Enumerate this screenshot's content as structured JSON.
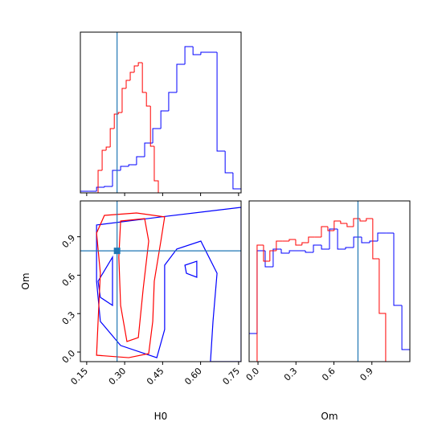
{
  "chart_data": [
    {
      "type": "histogram",
      "xlim": [
        0.125,
        0.76
      ],
      "ylim": [
        0,
        200
      ],
      "xticks": [
        0.15,
        0.3,
        0.45,
        0.6,
        0.75
      ],
      "truth": 0.27,
      "truth_color": "#1f77b4",
      "series": [
        {
          "color": "#0000ff",
          "bins": [
            0.125,
            0.157,
            0.189,
            0.22,
            0.252,
            0.284,
            0.316,
            0.347,
            0.379,
            0.411,
            0.443,
            0.474,
            0.506,
            0.538,
            0.57,
            0.601,
            0.633,
            0.665,
            0.697,
            0.728,
            0.76
          ],
          "values": [
            2,
            2,
            7,
            8,
            28,
            33,
            35,
            45,
            62,
            80,
            102,
            125,
            160,
            182,
            172,
            175,
            175,
            52,
            25,
            5
          ]
        },
        {
          "color": "#ff0000",
          "bins": [
            0.195,
            0.211,
            0.227,
            0.243,
            0.259,
            0.275,
            0.29,
            0.306,
            0.322,
            0.338,
            0.354,
            0.37,
            0.386,
            0.402,
            0.417,
            0.433
          ],
          "values": [
            28,
            53,
            57,
            80,
            98,
            100,
            130,
            140,
            150,
            158,
            162,
            125,
            108,
            58,
            15
          ]
        }
      ]
    },
    {
      "type": "contour",
      "xlim": [
        0.125,
        0.76
      ],
      "ylim": [
        -0.075,
        1.18
      ],
      "xticks": [
        0.15,
        {
          "value": 0.3,
          "label": "0.30"
        },
        0.45,
        {
          "value": 0.6,
          "label": "0.60"
        },
        0.75
      ],
      "yticks": [
        {
          "value": 0,
          "label": "0.0"
        },
        0.3,
        0.6,
        0.9
      ],
      "xlabel": "H0",
      "ylabel": "Om",
      "truth": [
        0.27,
        0.79
      ],
      "truth_color": "#1f77b4",
      "contours": [
        {
          "color": "#0000ff",
          "x": [
            0.189,
            0.443,
            0.76,
            0.76,
            0.639,
            0.649,
            0.665,
            0.601,
            0.506,
            0.458,
            0.458,
            0.427,
            0.284,
            0.204,
            0.189
          ],
          "y": [
            0.992,
            1.055,
            1.13,
            -0.075,
            -0.075,
            0.239,
            0.615,
            0.866,
            0.804,
            0.678,
            0.176,
            -0.044,
            0.051,
            0.239,
            0.553
          ]
        },
        {
          "color": "#0000ff",
          "x": [
            0.538,
            0.585,
            0.585,
            0.544
          ],
          "y": [
            0.678,
            0.709,
            0.584,
            0.615
          ]
        },
        {
          "color": "#0000ff",
          "x": [
            0.195,
            0.252,
            0.252,
            0.204
          ],
          "y": [
            0.553,
            0.741,
            0.364,
            0.427
          ]
        },
        {
          "color": "#ff0000",
          "x": [
            0.22,
            0.347,
            0.458,
            0.443,
            0.417,
            0.411,
            0.395,
            0.316,
            0.189,
            0.195,
            0.204,
            0.189
          ],
          "y": [
            1.067,
            1.086,
            1.055,
            0.866,
            0.553,
            0.239,
            -0.012,
            -0.044,
            -0.025,
            0.239,
            0.615,
            0.929
          ]
        },
        {
          "color": "#ff0000",
          "x": [
            0.284,
            0.379,
            0.395,
            0.373,
            0.354,
            0.309,
            0.284,
            0.277
          ],
          "y": [
            1.023,
            1.042,
            0.866,
            0.49,
            0.113,
            0.082,
            0.364,
            0.741
          ]
        }
      ]
    },
    {
      "type": "histogram",
      "xlim": [
        -0.07,
        1.2
      ],
      "ylim": [
        0,
        200
      ],
      "xticks": [
        {
          "value": 0,
          "label": "0.0"
        },
        0.3,
        0.6,
        0.9
      ],
      "xlabel": "Om",
      "truth": 0.79,
      "truth_color": "#1f77b4",
      "series": [
        {
          "color": "#0000ff",
          "bins": [
            -0.07,
            -0.007,
            0.057,
            0.12,
            0.184,
            0.248,
            0.311,
            0.375,
            0.438,
            0.502,
            0.565,
            0.629,
            0.692,
            0.756,
            0.819,
            0.883,
            0.946,
            1.01,
            1.073,
            1.137,
            1.2
          ],
          "values": [
            35,
            138,
            118,
            140,
            135,
            138,
            138,
            136,
            145,
            140,
            165,
            140,
            142,
            155,
            148,
            150,
            160,
            160,
            70,
            15
          ]
        },
        {
          "color": "#ff0000",
          "bins": [
            -0.007,
            0.044,
            0.094,
            0.145,
            0.196,
            0.247,
            0.298,
            0.348,
            0.399,
            0.45,
            0.501,
            0.552,
            0.602,
            0.653,
            0.704,
            0.755,
            0.806,
            0.856,
            0.907,
            0.958,
            1.009
          ],
          "values": [
            145,
            125,
            138,
            150,
            150,
            152,
            145,
            148,
            155,
            155,
            168,
            163,
            175,
            172,
            168,
            178,
            175,
            178,
            128,
            60
          ]
        }
      ]
    }
  ]
}
